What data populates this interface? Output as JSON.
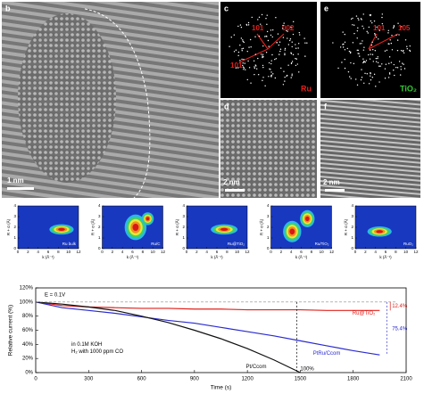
{
  "panels": {
    "b": {
      "letter": "b",
      "scale": "1 nm"
    },
    "c": {
      "letter": "c",
      "label": "Ru",
      "spots": [
        "101",
        "002",
        "101"
      ]
    },
    "e": {
      "letter": "e",
      "label": "TiO₂",
      "spots": [
        "101",
        "105"
      ]
    },
    "d": {
      "letter": "d",
      "scale": "2 nm"
    },
    "f": {
      "letter": "f",
      "scale": "2 nm"
    }
  },
  "wavelet": {
    "ylabel": "R + α (Å)",
    "xlabel": "k (Å⁻¹)",
    "yticks": [
      0,
      1,
      2,
      3,
      4
    ],
    "xticks": [
      0,
      2,
      4,
      6,
      8,
      10,
      12
    ],
    "samples": [
      "Ru bulk",
      "Ru/C",
      "Ru@TiO₂",
      "Ru/TiO₂",
      "RuO₂"
    ]
  },
  "chart_data": {
    "type": "line",
    "xlabel": "Time (s)",
    "ylabel": "Relative current (%)",
    "x": [
      0,
      150,
      300,
      450,
      600,
      750,
      900,
      1050,
      1200,
      1350,
      1500,
      1650,
      1800,
      1950
    ],
    "xlim": [
      0,
      2100
    ],
    "xticks": [
      0,
      300,
      600,
      900,
      1200,
      1500,
      1800,
      2100
    ],
    "ylim": [
      0,
      120
    ],
    "yticks": [
      {
        "value": 0,
        "label": "0%"
      },
      {
        "value": 20,
        "label": "20%"
      },
      {
        "value": 40,
        "label": "40%"
      },
      {
        "value": 60,
        "label": "60%"
      },
      {
        "value": 80,
        "label": "80%"
      },
      {
        "value": 100,
        "label": "100%"
      },
      {
        "value": 120,
        "label": "120%"
      }
    ],
    "series": [
      {
        "name": "Ru@TiO₂",
        "color": "#e0201b",
        "values": [
          100,
          95,
          93,
          92,
          91,
          91,
          90,
          90,
          89,
          89,
          89,
          88,
          88,
          88
        ]
      },
      {
        "name": "PtRu/Ccom",
        "color": "#2a2ad0",
        "values": [
          100,
          92,
          88,
          84,
          79,
          74,
          70,
          64,
          58,
          52,
          45,
          38,
          31,
          25
        ]
      },
      {
        "name": "Pt/Ccom",
        "color": "#111111",
        "values": [
          100,
          97,
          93,
          88,
          80,
          71,
          60,
          48,
          34,
          18,
          0,
          null,
          null,
          null
        ]
      }
    ],
    "annotations": [
      "E = 0.1V",
      "in 0.1M KOH",
      "H₂ with 1000 ppm CO",
      "100%",
      "12.4%",
      "75.4%"
    ]
  }
}
